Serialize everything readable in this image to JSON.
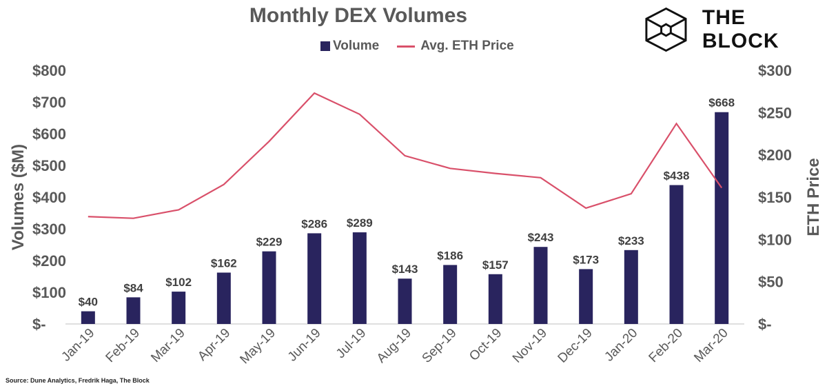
{
  "logo": {
    "text": "THE BLOCK"
  },
  "source": "Source: Dune Analytics, Fredrik Haga,  The Block",
  "colors": {
    "volume": "#29245e",
    "eth": "#d9506a",
    "text": "#595959"
  },
  "chart_data": {
    "type": "bar+line",
    "title": "Monthly DEX Volumes",
    "categories": [
      "Jan-19",
      "Feb-19",
      "Mar-19",
      "Apr-19",
      "May-19",
      "Jun-19",
      "Jul-19",
      "Aug-19",
      "Sep-19",
      "Oct-19",
      "Nov-19",
      "Dec-19",
      "Jan-20",
      "Feb-20",
      "Mar-20"
    ],
    "series": [
      {
        "name": "Volume",
        "type": "bar",
        "axis": "left",
        "values": [
          40,
          84,
          102,
          162,
          229,
          286,
          289,
          143,
          186,
          157,
          243,
          173,
          233,
          438,
          668
        ],
        "labels": [
          "$40",
          "$84",
          "$102",
          "$162",
          "$229",
          "$286",
          "$289",
          "$143",
          "$186",
          "$157",
          "$243",
          "$173",
          "$233",
          "$438",
          "$668"
        ]
      },
      {
        "name": "Avg. ETH Price",
        "type": "line",
        "axis": "right",
        "values": [
          127,
          125,
          135,
          165,
          216,
          273,
          248,
          199,
          184,
          178,
          173,
          137,
          154,
          237,
          161
        ]
      }
    ],
    "ylabel": "Volumes ($M)",
    "ylim": [
      0,
      800
    ],
    "yticks": [
      "$-",
      "$100",
      "$200",
      "$300",
      "$400",
      "$500",
      "$600",
      "$700",
      "$800"
    ],
    "y2label": "ETH Price",
    "y2lim": [
      0,
      300
    ],
    "y2ticks": [
      "$-",
      "$50",
      "$100",
      "$150",
      "$200",
      "$250",
      "$300"
    ],
    "grid": false,
    "legend": "top-center"
  }
}
